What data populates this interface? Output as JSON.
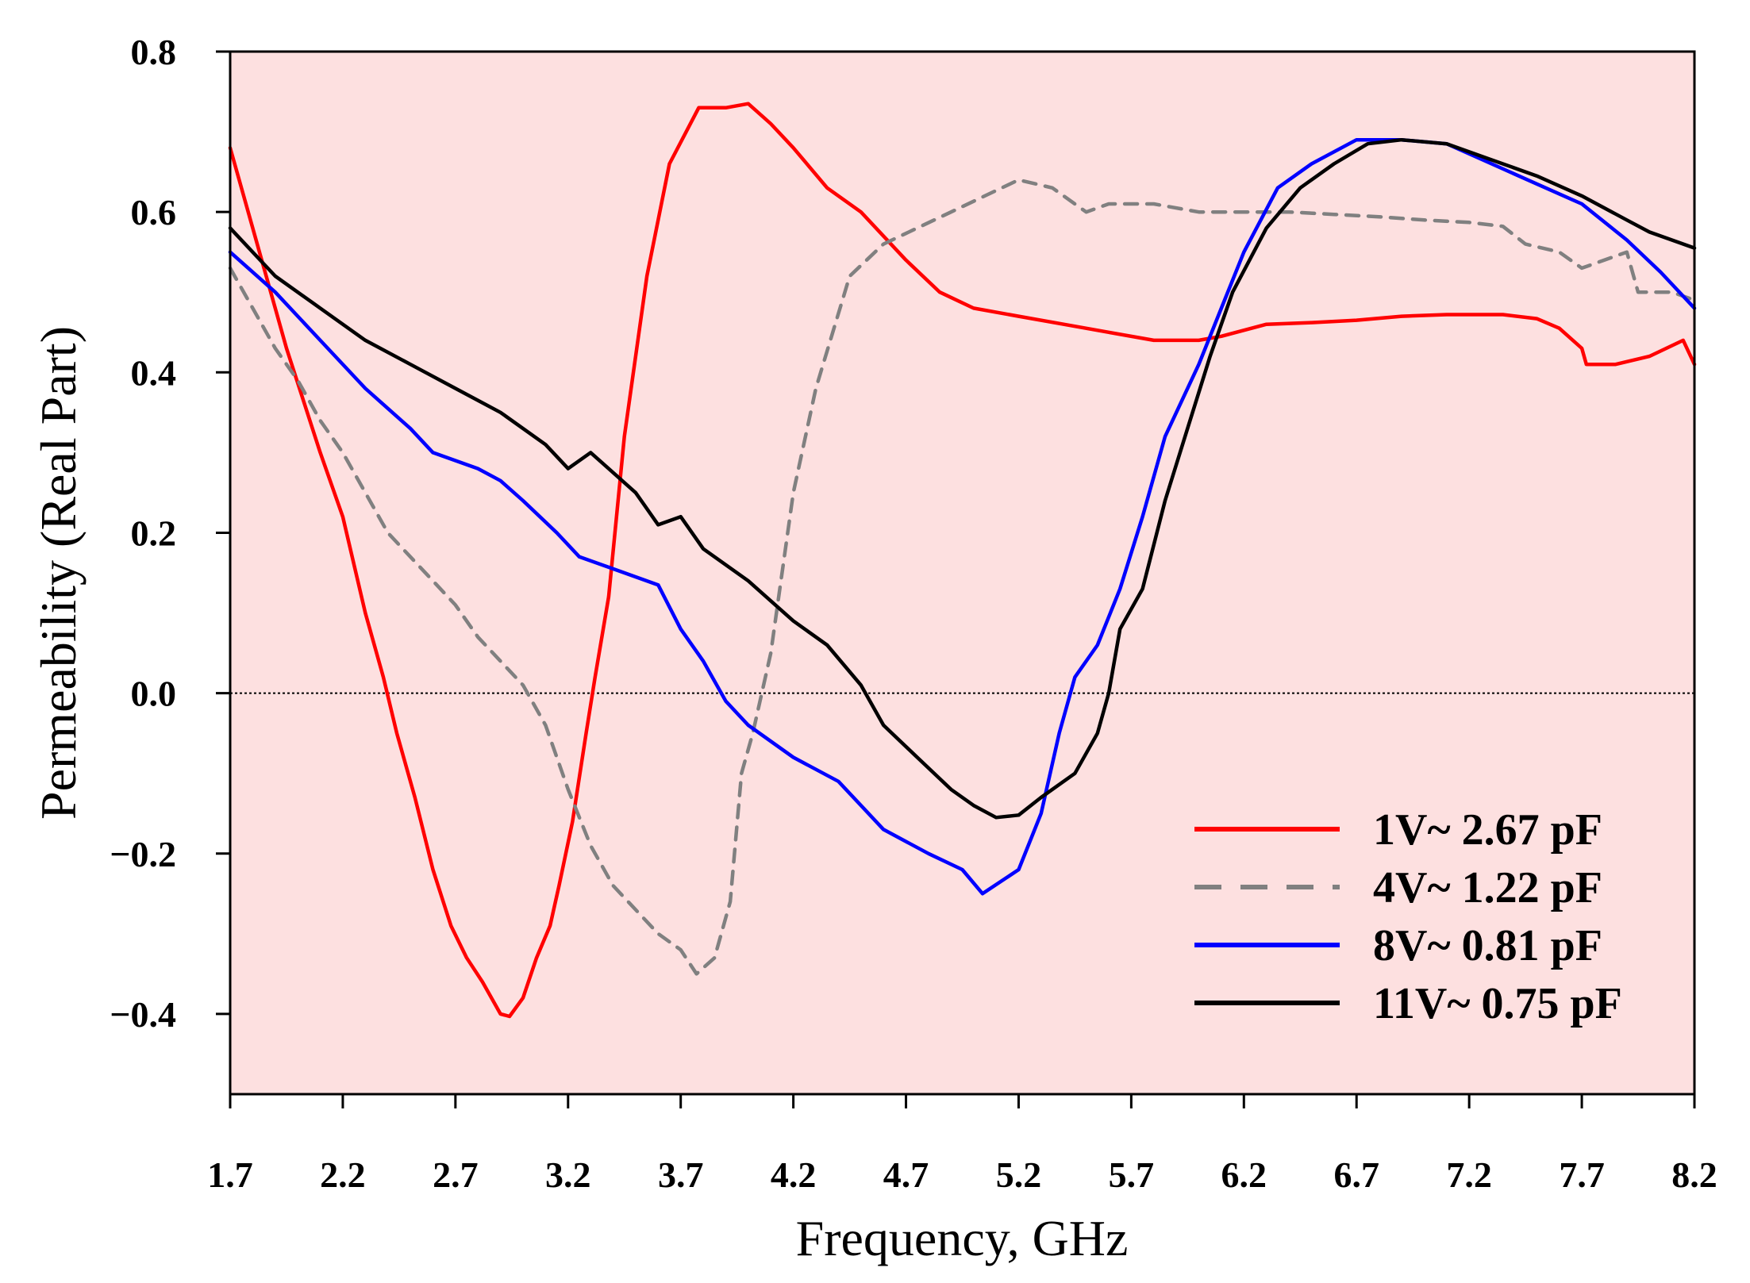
{
  "chart_data": {
    "type": "line",
    "title": "",
    "xlabel": "Frequency, GHz",
    "ylabel": "Permeability (Real Part)",
    "xlim": [
      1.7,
      8.2
    ],
    "ylim": [
      -0.5,
      0.8
    ],
    "xticks": [
      "1.7",
      "2.2",
      "2.7",
      "3.2",
      "3.7",
      "4.2",
      "4.7",
      "5.2",
      "5.7",
      "6.2",
      "6.7",
      "7.2",
      "7.7",
      "8.2"
    ],
    "yticks": [
      "0.8",
      "0.6",
      "0.4",
      "0.2",
      "0.0",
      "−0.2",
      "−0.4"
    ],
    "ytick_values": [
      0.8,
      0.6,
      0.4,
      0.2,
      0.0,
      -0.2,
      -0.4
    ],
    "background_color": "#fde0e0",
    "reference_line": 0.0,
    "legend_position": "bottom-right",
    "series": [
      {
        "name": "1V~ 2.67 pF",
        "color": "#ff0000",
        "dash": "solid",
        "points": [
          [
            1.7,
            0.68
          ],
          [
            1.82,
            0.56
          ],
          [
            1.95,
            0.43
          ],
          [
            2.1,
            0.3
          ],
          [
            2.2,
            0.22
          ],
          [
            2.3,
            0.1
          ],
          [
            2.38,
            0.02
          ],
          [
            2.44,
            -0.05
          ],
          [
            2.52,
            -0.13
          ],
          [
            2.6,
            -0.22
          ],
          [
            2.68,
            -0.29
          ],
          [
            2.75,
            -0.33
          ],
          [
            2.82,
            -0.36
          ],
          [
            2.9,
            -0.4
          ],
          [
            2.94,
            -0.403
          ],
          [
            3.0,
            -0.38
          ],
          [
            3.06,
            -0.33
          ],
          [
            3.12,
            -0.29
          ],
          [
            3.16,
            -0.24
          ],
          [
            3.22,
            -0.16
          ],
          [
            3.28,
            -0.05
          ],
          [
            3.32,
            0.02
          ],
          [
            3.38,
            0.12
          ],
          [
            3.45,
            0.32
          ],
          [
            3.55,
            0.52
          ],
          [
            3.65,
            0.66
          ],
          [
            3.78,
            0.73
          ],
          [
            3.9,
            0.73
          ],
          [
            4.0,
            0.735
          ],
          [
            4.1,
            0.71
          ],
          [
            4.2,
            0.68
          ],
          [
            4.35,
            0.63
          ],
          [
            4.5,
            0.6
          ],
          [
            4.7,
            0.54
          ],
          [
            4.85,
            0.5
          ],
          [
            5.0,
            0.48
          ],
          [
            5.2,
            0.47
          ],
          [
            5.4,
            0.46
          ],
          [
            5.6,
            0.45
          ],
          [
            5.8,
            0.44
          ],
          [
            6.0,
            0.44
          ],
          [
            6.1,
            0.445
          ],
          [
            6.3,
            0.46
          ],
          [
            6.5,
            0.462
          ],
          [
            6.7,
            0.465
          ],
          [
            6.9,
            0.47
          ],
          [
            7.1,
            0.472
          ],
          [
            7.35,
            0.472
          ],
          [
            7.5,
            0.467
          ],
          [
            7.6,
            0.455
          ],
          [
            7.7,
            0.43
          ],
          [
            7.72,
            0.41
          ],
          [
            7.85,
            0.41
          ],
          [
            8.0,
            0.42
          ],
          [
            8.15,
            0.44
          ],
          [
            8.2,
            0.41
          ]
        ]
      },
      {
        "name": "4V~ 1.22 pF",
        "color": "#808080",
        "dash": "dashed",
        "points": [
          [
            1.7,
            0.53
          ],
          [
            1.8,
            0.48
          ],
          [
            1.9,
            0.43
          ],
          [
            2.0,
            0.39
          ],
          [
            2.1,
            0.34
          ],
          [
            2.2,
            0.3
          ],
          [
            2.3,
            0.25
          ],
          [
            2.4,
            0.2
          ],
          [
            2.5,
            0.17
          ],
          [
            2.6,
            0.14
          ],
          [
            2.7,
            0.11
          ],
          [
            2.8,
            0.07
          ],
          [
            2.9,
            0.04
          ],
          [
            3.0,
            0.01
          ],
          [
            3.1,
            -0.04
          ],
          [
            3.2,
            -0.12
          ],
          [
            3.3,
            -0.19
          ],
          [
            3.4,
            -0.24
          ],
          [
            3.5,
            -0.27
          ],
          [
            3.6,
            -0.3
          ],
          [
            3.7,
            -0.32
          ],
          [
            3.77,
            -0.35
          ],
          [
            3.85,
            -0.33
          ],
          [
            3.92,
            -0.26
          ],
          [
            3.97,
            -0.1
          ],
          [
            4.02,
            -0.05
          ],
          [
            4.1,
            0.05
          ],
          [
            4.15,
            0.15
          ],
          [
            4.2,
            0.25
          ],
          [
            4.3,
            0.38
          ],
          [
            4.45,
            0.52
          ],
          [
            4.6,
            0.56
          ],
          [
            4.75,
            0.58
          ],
          [
            4.9,
            0.6
          ],
          [
            5.05,
            0.62
          ],
          [
            5.2,
            0.64
          ],
          [
            5.35,
            0.63
          ],
          [
            5.5,
            0.6
          ],
          [
            5.6,
            0.61
          ],
          [
            5.8,
            0.61
          ],
          [
            6.0,
            0.6
          ],
          [
            6.2,
            0.6
          ],
          [
            6.4,
            0.6
          ],
          [
            6.6,
            0.597
          ],
          [
            6.8,
            0.594
          ],
          [
            7.0,
            0.59
          ],
          [
            7.2,
            0.587
          ],
          [
            7.35,
            0.582
          ],
          [
            7.45,
            0.56
          ],
          [
            7.6,
            0.55
          ],
          [
            7.7,
            0.53
          ],
          [
            7.8,
            0.54
          ],
          [
            7.9,
            0.55
          ],
          [
            7.95,
            0.5
          ],
          [
            8.1,
            0.5
          ],
          [
            8.2,
            0.49
          ]
        ]
      },
      {
        "name": "8V~ 0.81 pF",
        "color": "#0000ff",
        "dash": "solid",
        "points": [
          [
            1.7,
            0.55
          ],
          [
            1.9,
            0.5
          ],
          [
            2.1,
            0.44
          ],
          [
            2.3,
            0.38
          ],
          [
            2.5,
            0.33
          ],
          [
            2.6,
            0.3
          ],
          [
            2.8,
            0.28
          ],
          [
            2.9,
            0.265
          ],
          [
            3.0,
            0.24
          ],
          [
            3.15,
            0.2
          ],
          [
            3.25,
            0.17
          ],
          [
            3.4,
            0.155
          ],
          [
            3.6,
            0.135
          ],
          [
            3.7,
            0.08
          ],
          [
            3.8,
            0.04
          ],
          [
            3.9,
            -0.01
          ],
          [
            4.0,
            -0.04
          ],
          [
            4.2,
            -0.08
          ],
          [
            4.4,
            -0.11
          ],
          [
            4.6,
            -0.17
          ],
          [
            4.8,
            -0.2
          ],
          [
            4.95,
            -0.22
          ],
          [
            5.04,
            -0.25
          ],
          [
            5.2,
            -0.22
          ],
          [
            5.3,
            -0.15
          ],
          [
            5.38,
            -0.05
          ],
          [
            5.45,
            0.02
          ],
          [
            5.55,
            0.06
          ],
          [
            5.65,
            0.13
          ],
          [
            5.75,
            0.22
          ],
          [
            5.85,
            0.32
          ],
          [
            6.0,
            0.41
          ],
          [
            6.1,
            0.48
          ],
          [
            6.2,
            0.55
          ],
          [
            6.35,
            0.63
          ],
          [
            6.5,
            0.66
          ],
          [
            6.7,
            0.69
          ],
          [
            6.9,
            0.69
          ],
          [
            7.1,
            0.685
          ],
          [
            7.3,
            0.66
          ],
          [
            7.5,
            0.635
          ],
          [
            7.7,
            0.61
          ],
          [
            7.9,
            0.565
          ],
          [
            8.05,
            0.525
          ],
          [
            8.2,
            0.48
          ]
        ]
      },
      {
        "name": "11V~ 0.75 pF",
        "color": "#000000",
        "dash": "solid",
        "points": [
          [
            1.7,
            0.58
          ],
          [
            1.9,
            0.52
          ],
          [
            2.1,
            0.48
          ],
          [
            2.3,
            0.44
          ],
          [
            2.5,
            0.41
          ],
          [
            2.7,
            0.38
          ],
          [
            2.9,
            0.35
          ],
          [
            3.1,
            0.31
          ],
          [
            3.2,
            0.28
          ],
          [
            3.3,
            0.3
          ],
          [
            3.5,
            0.25
          ],
          [
            3.6,
            0.21
          ],
          [
            3.7,
            0.22
          ],
          [
            3.8,
            0.18
          ],
          [
            4.0,
            0.14
          ],
          [
            4.2,
            0.09
          ],
          [
            4.35,
            0.06
          ],
          [
            4.5,
            0.01
          ],
          [
            4.6,
            -0.04
          ],
          [
            4.75,
            -0.08
          ],
          [
            4.9,
            -0.12
          ],
          [
            5.0,
            -0.14
          ],
          [
            5.1,
            -0.155
          ],
          [
            5.2,
            -0.152
          ],
          [
            5.3,
            -0.13
          ],
          [
            5.45,
            -0.1
          ],
          [
            5.55,
            -0.05
          ],
          [
            5.6,
            0.0
          ],
          [
            5.65,
            0.08
          ],
          [
            5.75,
            0.13
          ],
          [
            5.85,
            0.24
          ],
          [
            5.95,
            0.33
          ],
          [
            6.05,
            0.42
          ],
          [
            6.15,
            0.5
          ],
          [
            6.3,
            0.58
          ],
          [
            6.45,
            0.63
          ],
          [
            6.6,
            0.66
          ],
          [
            6.75,
            0.685
          ],
          [
            6.9,
            0.69
          ],
          [
            7.1,
            0.685
          ],
          [
            7.3,
            0.665
          ],
          [
            7.5,
            0.645
          ],
          [
            7.7,
            0.62
          ],
          [
            7.9,
            0.59
          ],
          [
            8.0,
            0.575
          ],
          [
            8.1,
            0.565
          ],
          [
            8.2,
            0.555
          ]
        ]
      }
    ]
  }
}
